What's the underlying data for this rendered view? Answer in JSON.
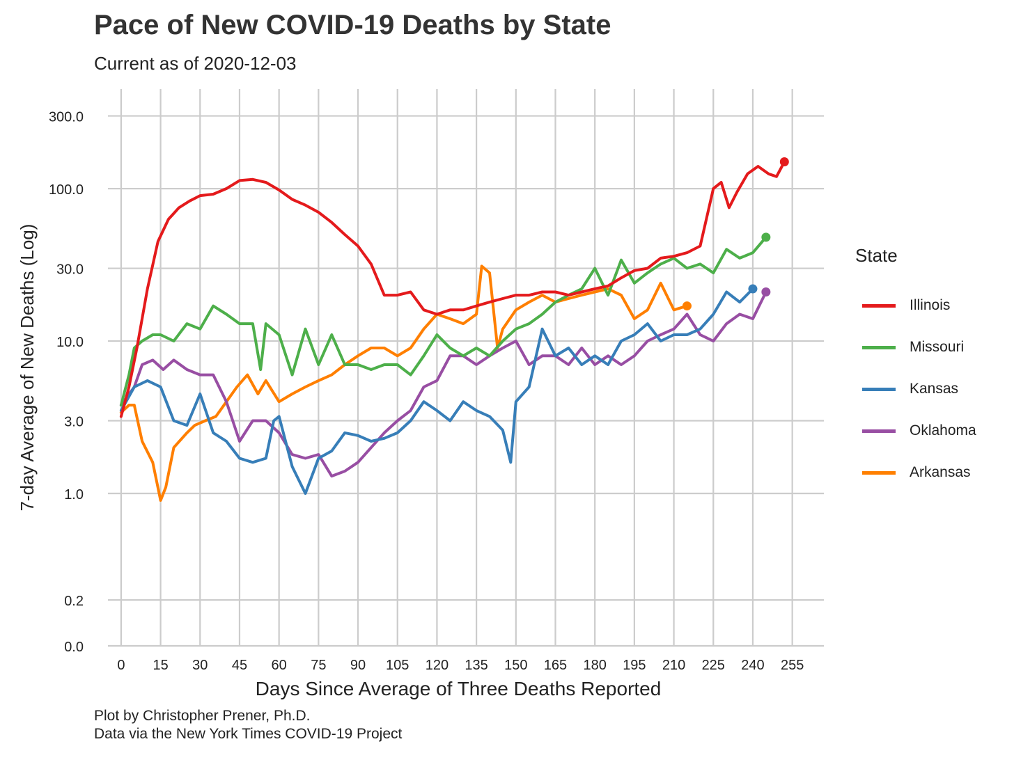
{
  "title": "Pace of New COVID-19 Deaths by State",
  "subtitle": "Current as of 2020-12-03",
  "caption": [
    "Plot by Christopher Prener, Ph.D.",
    "Data via the New York Times COVID-19 Project"
  ],
  "legend": {
    "title": "State",
    "items": [
      {
        "label": "Illinois",
        "color": "#e41a1c"
      },
      {
        "label": "Missouri",
        "color": "#4daf4a"
      },
      {
        "label": "Kansas",
        "color": "#377eb8"
      },
      {
        "label": "Oklahoma",
        "color": "#984ea3"
      },
      {
        "label": "Arkansas",
        "color": "#ff7f00"
      }
    ]
  },
  "chart_data": {
    "type": "line",
    "title": "Pace of New COVID-19 Deaths by State",
    "subtitle": "Current as of 2020-12-03",
    "xlabel": "Days Since Average of Three Deaths Reported",
    "ylabel": "7-day Average of New Deaths (Log)",
    "y_scale": "log",
    "xlim": [
      -5,
      267
    ],
    "ylim": [
      0.1,
      450
    ],
    "x_ticks": [
      0,
      15,
      30,
      45,
      60,
      75,
      90,
      105,
      120,
      135,
      150,
      165,
      180,
      195,
      210,
      225,
      240,
      255
    ],
    "y_ticks": [
      {
        "label": "0.0",
        "value": 0.1
      },
      {
        "label": "0.2",
        "value": 0.2
      },
      {
        "label": "1.0",
        "value": 1
      },
      {
        "label": "3.0",
        "value": 3
      },
      {
        "label": "10.0",
        "value": 10
      },
      {
        "label": "30.0",
        "value": 30
      },
      {
        "label": "100.0",
        "value": 100
      },
      {
        "label": "300.0",
        "value": 300
      }
    ],
    "grid": true,
    "legend_position": "right",
    "series": [
      {
        "name": "Illinois",
        "color": "#e41a1c",
        "x": [
          0,
          3,
          6,
          10,
          14,
          18,
          22,
          26,
          30,
          35,
          40,
          45,
          50,
          55,
          60,
          65,
          70,
          75,
          80,
          85,
          90,
          95,
          100,
          105,
          110,
          115,
          120,
          125,
          130,
          135,
          140,
          145,
          150,
          155,
          160,
          165,
          170,
          175,
          180,
          185,
          190,
          195,
          200,
          205,
          210,
          215,
          220,
          225,
          228,
          231,
          234,
          238,
          242,
          246,
          249,
          252
        ],
        "y": [
          3.2,
          5,
          9,
          22,
          45,
          63,
          75,
          83,
          90,
          92,
          100,
          113,
          115,
          110,
          98,
          85,
          78,
          70,
          60,
          50,
          42,
          32,
          20,
          20,
          21,
          16,
          15,
          16,
          16,
          17,
          18,
          19,
          20,
          20,
          21,
          21,
          20,
          21,
          22,
          23,
          26,
          29,
          30,
          35,
          36,
          38,
          42,
          100,
          110,
          75,
          95,
          125,
          140,
          125,
          120,
          150
        ]
      },
      {
        "name": "Missouri",
        "color": "#4daf4a",
        "x": [
          0,
          3,
          5,
          8,
          12,
          15,
          20,
          25,
          30,
          35,
          40,
          45,
          50,
          53,
          55,
          60,
          65,
          70,
          75,
          80,
          85,
          90,
          95,
          100,
          105,
          110,
          115,
          120,
          125,
          130,
          135,
          140,
          145,
          150,
          155,
          160,
          165,
          170,
          175,
          180,
          185,
          190,
          195,
          200,
          205,
          210,
          215,
          220,
          225,
          230,
          235,
          240,
          245
        ],
        "y": [
          3.8,
          6,
          9,
          10,
          11,
          11,
          10,
          13,
          12,
          17,
          15,
          13,
          13,
          6.5,
          13,
          11,
          6,
          12,
          7,
          11,
          7,
          7,
          6.5,
          7,
          7,
          6,
          8,
          11,
          9,
          8,
          9,
          8,
          10,
          12,
          13,
          15,
          18,
          20,
          22,
          30,
          20,
          34,
          24,
          28,
          32,
          35,
          30,
          32,
          28,
          40,
          35,
          38,
          48
        ]
      },
      {
        "name": "Kansas",
        "color": "#377eb8",
        "x": [
          0,
          5,
          10,
          15,
          20,
          25,
          30,
          35,
          40,
          45,
          50,
          55,
          58,
          60,
          65,
          70,
          75,
          80,
          85,
          90,
          95,
          100,
          105,
          110,
          115,
          120,
          125,
          130,
          135,
          140,
          145,
          148,
          150,
          155,
          160,
          165,
          170,
          175,
          180,
          185,
          190,
          195,
          200,
          205,
          210,
          215,
          220,
          225,
          230,
          235,
          240
        ],
        "y": [
          3.5,
          5,
          5.5,
          5,
          3,
          2.8,
          4.5,
          2.5,
          2.2,
          1.7,
          1.6,
          1.7,
          3,
          3.2,
          1.5,
          1,
          1.7,
          1.9,
          2.5,
          2.4,
          2.2,
          2.3,
          2.5,
          3,
          4,
          3.5,
          3,
          4,
          3.5,
          3.2,
          2.6,
          1.6,
          4,
          5,
          12,
          8,
          9,
          7,
          8,
          7,
          10,
          11,
          13,
          10,
          11,
          11,
          12,
          15,
          21,
          18,
          22
        ]
      },
      {
        "name": "Oklahoma",
        "color": "#984ea3",
        "x": [
          0,
          5,
          8,
          12,
          16,
          20,
          25,
          30,
          35,
          40,
          45,
          50,
          55,
          60,
          65,
          70,
          75,
          80,
          85,
          90,
          95,
          100,
          105,
          110,
          115,
          120,
          125,
          130,
          135,
          140,
          145,
          150,
          155,
          160,
          165,
          170,
          175,
          180,
          185,
          190,
          195,
          200,
          205,
          210,
          215,
          220,
          225,
          230,
          235,
          240,
          245
        ],
        "y": [
          3.8,
          5,
          7,
          7.5,
          6.5,
          7.5,
          6.5,
          6,
          6,
          4,
          2.2,
          3,
          3,
          2.5,
          1.8,
          1.7,
          1.8,
          1.3,
          1.4,
          1.6,
          2,
          2.5,
          3,
          3.5,
          5,
          5.5,
          8,
          8,
          7,
          8,
          9,
          10,
          7,
          8,
          8,
          7,
          9,
          7,
          8,
          7,
          8,
          10,
          11,
          12,
          15,
          11,
          10,
          13,
          15,
          14,
          21
        ]
      },
      {
        "name": "Arkansas",
        "color": "#ff7f00",
        "x": [
          0,
          3,
          5,
          8,
          12,
          15,
          17,
          20,
          25,
          28,
          32,
          36,
          40,
          44,
          48,
          52,
          55,
          60,
          65,
          70,
          75,
          80,
          85,
          90,
          95,
          100,
          105,
          110,
          115,
          120,
          125,
          130,
          135,
          137,
          140,
          143,
          145,
          150,
          155,
          160,
          165,
          170,
          175,
          180,
          185,
          190,
          195,
          200,
          205,
          210,
          215
        ],
        "y": [
          3.4,
          3.8,
          3.8,
          2.2,
          1.6,
          0.9,
          1.1,
          2,
          2.5,
          2.8,
          3,
          3.2,
          4,
          5,
          6,
          4.5,
          5.5,
          4,
          4.5,
          5,
          5.5,
          6,
          7,
          8,
          9,
          9,
          8,
          9,
          12,
          15,
          14,
          13,
          15,
          31,
          28,
          9,
          12,
          16,
          18,
          20,
          18,
          19,
          20,
          21,
          22,
          20,
          14,
          16,
          24,
          16,
          17
        ]
      }
    ]
  }
}
